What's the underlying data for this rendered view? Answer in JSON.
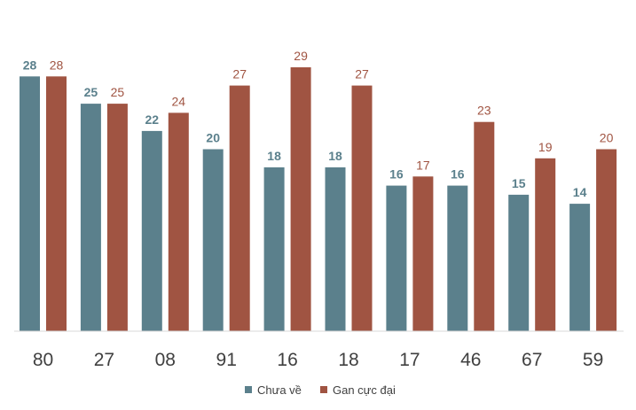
{
  "chart_data": {
    "type": "bar",
    "categories": [
      "80",
      "27",
      "08",
      "91",
      "16",
      "18",
      "17",
      "46",
      "67",
      "59"
    ],
    "series": [
      {
        "name": "Chưa về",
        "color": "#5b808c",
        "values": [
          28,
          25,
          22,
          20,
          18,
          18,
          16,
          16,
          15,
          14
        ]
      },
      {
        "name": "Gan cực đại",
        "color": "#a05442",
        "values": [
          28,
          25,
          24,
          27,
          29,
          27,
          17,
          23,
          19,
          20
        ]
      }
    ],
    "ylim": [
      0,
      29
    ],
    "grid": false,
    "legend_position": "bottom"
  }
}
